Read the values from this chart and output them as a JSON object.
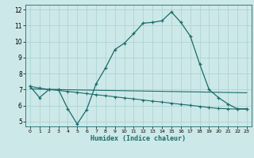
{
  "xlabel": "Humidex (Indice chaleur)",
  "background_color": "#cde8e8",
  "grid_color": "#a8d0d0",
  "line_color": "#1a6b6b",
  "xlim": [
    -0.5,
    23.5
  ],
  "ylim": [
    4.7,
    12.3
  ],
  "xticks": [
    0,
    1,
    2,
    3,
    4,
    5,
    6,
    7,
    8,
    9,
    10,
    11,
    12,
    13,
    14,
    15,
    16,
    17,
    18,
    19,
    20,
    21,
    22,
    23
  ],
  "yticks": [
    5,
    6,
    7,
    8,
    9,
    10,
    11,
    12
  ],
  "line1_x": [
    0,
    1,
    2,
    3,
    4,
    5,
    6,
    7,
    8,
    9,
    10,
    11,
    12,
    13,
    14,
    15,
    16,
    17,
    18,
    19,
    20,
    21,
    22,
    23
  ],
  "line1_y": [
    7.2,
    6.5,
    7.0,
    7.0,
    5.8,
    4.85,
    5.75,
    7.35,
    8.35,
    9.5,
    9.9,
    10.5,
    11.15,
    11.2,
    11.3,
    11.85,
    11.2,
    10.35,
    8.6,
    7.0,
    6.5,
    6.1,
    5.8,
    5.8
  ],
  "line2_x": [
    0,
    1,
    2,
    3,
    4,
    5,
    6,
    7,
    8,
    9,
    10,
    11,
    12,
    13,
    14,
    15,
    16,
    17,
    18,
    19,
    20,
    21,
    22,
    23
  ],
  "line2_y": [
    7.05,
    7.03,
    7.01,
    7.0,
    6.99,
    6.98,
    6.97,
    6.96,
    6.95,
    6.94,
    6.93,
    6.92,
    6.91,
    6.9,
    6.89,
    6.88,
    6.87,
    6.86,
    6.85,
    6.84,
    6.83,
    6.82,
    6.81,
    6.8
  ],
  "line3_x": [
    0,
    1,
    2,
    3,
    4,
    5,
    6,
    7,
    8,
    9,
    10,
    11,
    12,
    13,
    14,
    15,
    16,
    17,
    18,
    19,
    20,
    21,
    22,
    23
  ],
  "line3_y": [
    7.2,
    7.1,
    7.0,
    6.95,
    6.88,
    6.82,
    6.75,
    6.68,
    6.62,
    6.55,
    6.48,
    6.42,
    6.35,
    6.28,
    6.22,
    6.15,
    6.08,
    6.02,
    5.95,
    5.88,
    5.82,
    5.8,
    5.78,
    5.78
  ]
}
